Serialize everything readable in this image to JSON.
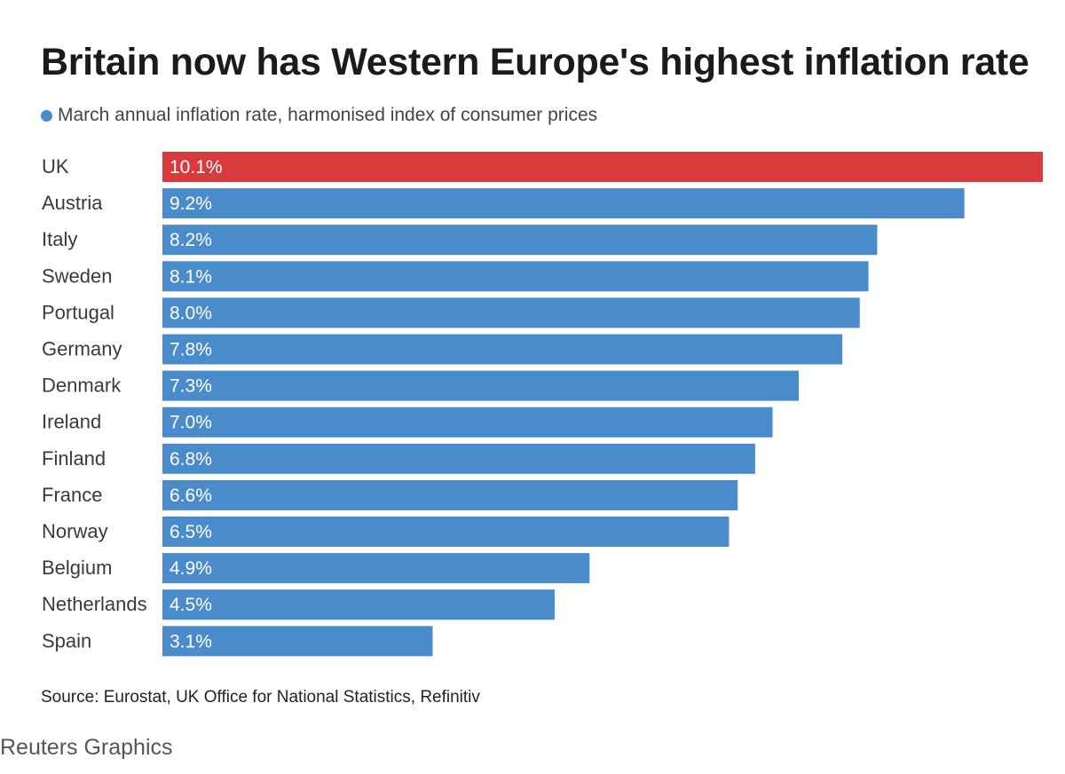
{
  "chart_data": {
    "type": "bar",
    "orientation": "horizontal",
    "title": "Britain now has Western Europe's highest inflation rate",
    "legend": "March annual inflation rate, harmonised index of consumer prices",
    "categories": [
      "UK",
      "Austria",
      "Italy",
      "Sweden",
      "Portugal",
      "Germany",
      "Denmark",
      "Ireland",
      "Finland",
      "France",
      "Norway",
      "Belgium",
      "Netherlands",
      "Spain"
    ],
    "values": [
      10.1,
      9.2,
      8.2,
      8.1,
      8.0,
      7.8,
      7.3,
      7.0,
      6.8,
      6.6,
      6.5,
      4.9,
      4.5,
      3.1
    ],
    "value_labels": [
      "10.1%",
      "9.2%",
      "8.2%",
      "8.1%",
      "8.0%",
      "7.8%",
      "7.3%",
      "7.0%",
      "6.8%",
      "6.6%",
      "6.5%",
      "4.9%",
      "4.5%",
      "3.1%"
    ],
    "highlight_index": 0,
    "xlim": [
      0,
      10.1
    ],
    "xlabel": "",
    "ylabel": "",
    "grid": false
  },
  "colors": {
    "bar": "#4a8ccb",
    "highlight": "#d93a3d",
    "legend_dot": "#4a8ccb"
  },
  "source": "Source: Eurostat, UK Office for National Statistics, Refinitiv",
  "credit": "Reuters Graphics"
}
